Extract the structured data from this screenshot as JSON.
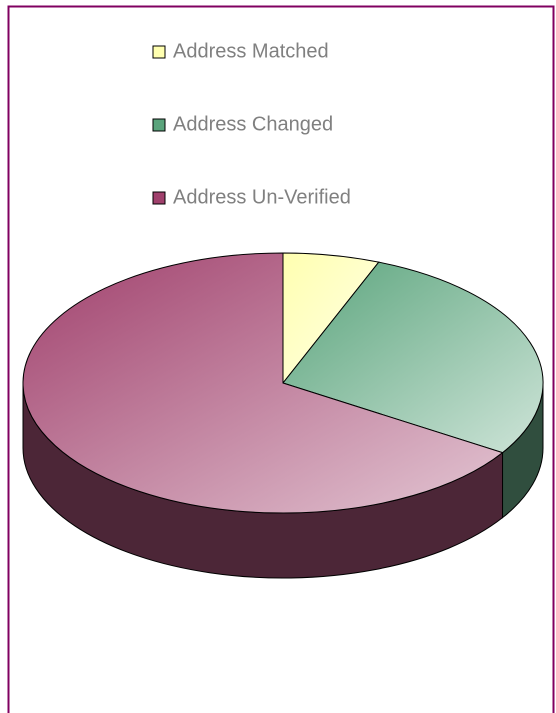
{
  "chart_data": {
    "type": "pie",
    "categories": [
      "Address Matched",
      "Address Changed",
      "Address Un-Verified"
    ],
    "values": [
      6,
      28,
      66
    ],
    "colors": [
      "#ffffb0",
      "#5aa47c",
      "#a0406c"
    ]
  }
}
